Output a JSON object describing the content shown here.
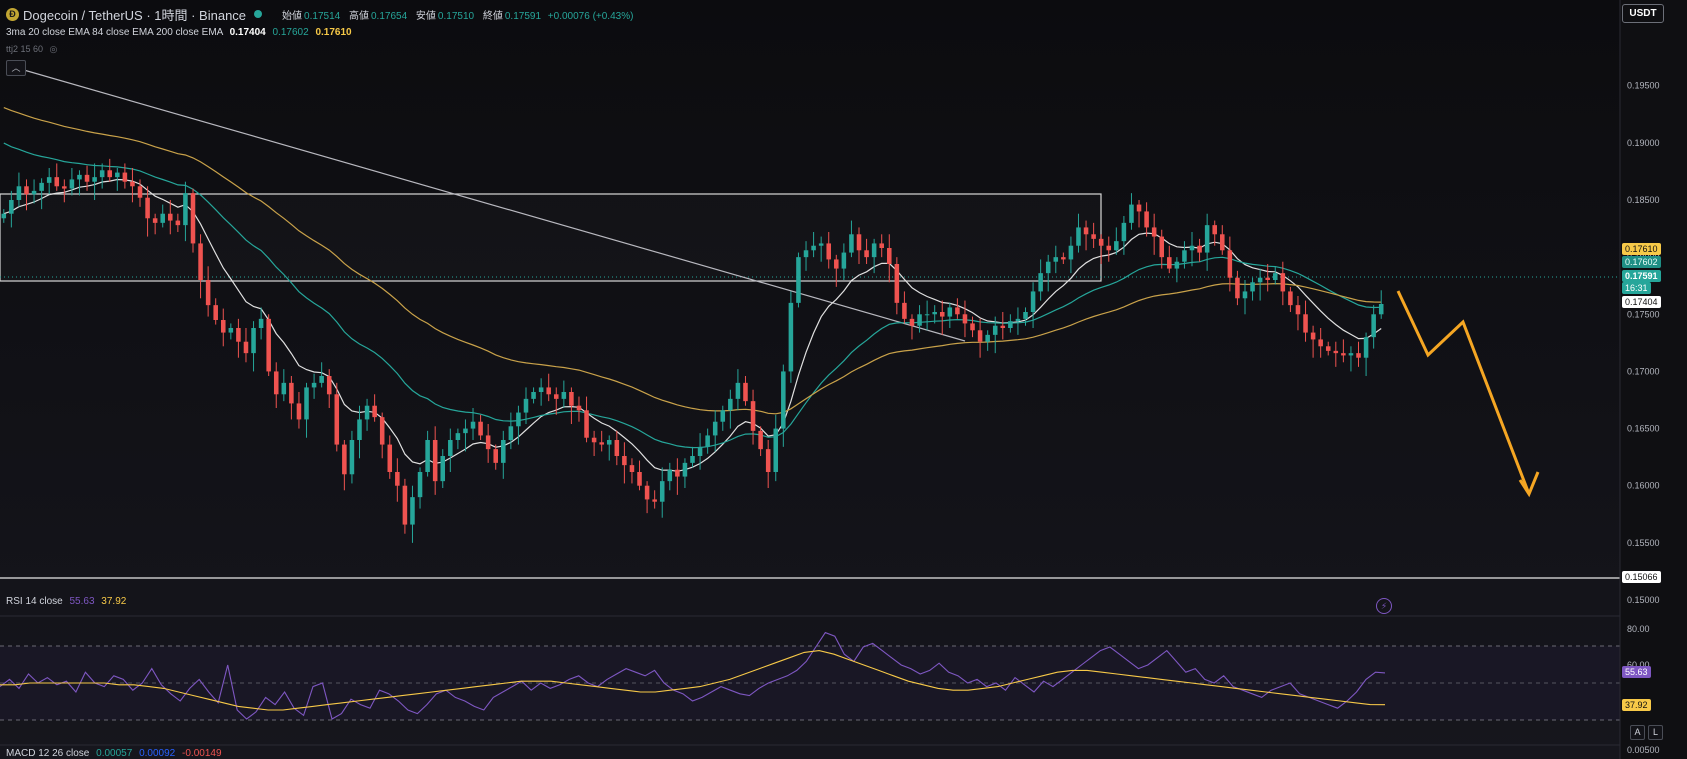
{
  "header": {
    "title": "Dogecoin / TetherUS · 1時間 · Binance",
    "open_label": "始値",
    "open": "0.17514",
    "high_label": "高値",
    "high": "0.17654",
    "low_label": "安値",
    "low": "0.17510",
    "close_label": "終値",
    "close": "0.17591",
    "change": "+0.00076 (+0.43%)"
  },
  "indicators": {
    "ma_label": "3ma 20 close EMA 84 close EMA 200 close EMA",
    "ma_v1": "0.17404",
    "ma_v2": "0.17602",
    "ma_v3": "0.17610",
    "ttj_label": "ttj2 15 60",
    "rsi_label": "RSI 14 close",
    "rsi_v1": "55.63",
    "rsi_v2": "37.92",
    "macd_label": "MACD 12 26 close",
    "macd_v1": "0.00057",
    "macd_v2": "0.00092",
    "macd_v3": "-0.00149"
  },
  "toolbar": {
    "currency": "USDT",
    "auto_label": "A",
    "log_label": "L",
    "collapse_icon": "chevron-up-icon",
    "bolt_icon": "lightning-icon"
  },
  "price_tags": {
    "ema200": "0.17610",
    "ema84": "0.17602",
    "last": "0.17591",
    "countdown": "16:31",
    "ema20": "0.17404",
    "line": "0.15066",
    "rsi": "55.63",
    "rsi_ma": "37.92"
  },
  "colors": {
    "up": "#26a69a",
    "down": "#ef5350",
    "ema20": "#e0e0e0",
    "ema84": "#26a69a",
    "ema200": "#c9a24a",
    "rsi": "#7e57c2",
    "rsi_ma": "#f7c948",
    "arrow": "#f5a623"
  },
  "chart_data": [
    {
      "type": "candlestick",
      "symbol": "Dogecoin / TetherUS",
      "interval": "1時間",
      "ylim": [
        0.15,
        0.199
      ],
      "y_ticks": [
        "0.19500",
        "0.19000",
        "0.18500",
        "0.18000",
        "0.17500",
        "0.17000",
        "0.16500",
        "0.16000",
        "0.15500",
        "0.15000"
      ],
      "close_series": [
        0.1838,
        0.185,
        0.1862,
        0.1855,
        0.1858,
        0.1865,
        0.187,
        0.1862,
        0.186,
        0.1868,
        0.1872,
        0.1866,
        0.187,
        0.1876,
        0.187,
        0.1874,
        0.1866,
        0.1862,
        0.1852,
        0.1834,
        0.183,
        0.1838,
        0.1832,
        0.1828,
        0.1856,
        0.1812,
        0.178,
        0.1758,
        0.1745,
        0.1734,
        0.1738,
        0.1726,
        0.1716,
        0.1738,
        0.1746,
        0.17,
        0.168,
        0.169,
        0.1672,
        0.1658,
        0.1686,
        0.169,
        0.1696,
        0.168,
        0.1636,
        0.161,
        0.164,
        0.1658,
        0.167,
        0.166,
        0.1636,
        0.1612,
        0.16,
        0.1566,
        0.159,
        0.1612,
        0.164,
        0.1604,
        0.1626,
        0.164,
        0.1646,
        0.165,
        0.1656,
        0.1644,
        0.1632,
        0.162,
        0.164,
        0.1652,
        0.1664,
        0.1676,
        0.1682,
        0.1686,
        0.168,
        0.1676,
        0.1682,
        0.167,
        0.1666,
        0.1642,
        0.1638,
        0.1636,
        0.164,
        0.1626,
        0.1618,
        0.1612,
        0.16,
        0.1588,
        0.1586,
        0.1604,
        0.1614,
        0.1608,
        0.162,
        0.1626,
        0.1634,
        0.1644,
        0.1656,
        0.1666,
        0.1676,
        0.169,
        0.1674,
        0.1648,
        0.1632,
        0.1612,
        0.165,
        0.17,
        0.176,
        0.18,
        0.1806,
        0.181,
        0.1812,
        0.1798,
        0.179,
        0.1804,
        0.182,
        0.1806,
        0.18,
        0.1812,
        0.1808,
        0.1794,
        0.176,
        0.1746,
        0.174,
        0.175,
        0.175,
        0.1752,
        0.1748,
        0.1756,
        0.175,
        0.1742,
        0.1736,
        0.1726,
        0.1732,
        0.174,
        0.1738,
        0.1744,
        0.1746,
        0.1752,
        0.177,
        0.1786,
        0.1796,
        0.18,
        0.1798,
        0.181,
        0.1826,
        0.182,
        0.1816,
        0.181,
        0.1806,
        0.1814,
        0.183,
        0.1846,
        0.184,
        0.1826,
        0.1818,
        0.18,
        0.179,
        0.1796,
        0.1806,
        0.181,
        0.1804,
        0.1828,
        0.182,
        0.1806,
        0.1782,
        0.1764,
        0.177,
        0.1778,
        0.1782,
        0.178,
        0.1786,
        0.177,
        0.1758,
        0.175,
        0.1734,
        0.1728,
        0.1722,
        0.1718,
        0.1716,
        0.1714,
        0.1716,
        0.1712,
        0.173,
        0.175,
        0.1759
      ]
    },
    {
      "type": "line",
      "title": "RSI 14 close",
      "ylim": [
        20,
        80
      ],
      "y_ticks": [
        "80.00",
        "60.00"
      ],
      "bands": [
        70,
        30
      ],
      "series": [
        {
          "name": "RSI",
          "values": [
            48,
            52,
            47,
            55,
            50,
            53,
            49,
            51,
            45,
            56,
            50,
            48,
            54,
            52,
            46,
            50,
            58,
            49,
            44,
            40,
            47,
            52,
            45,
            39,
            60,
            35,
            30,
            34,
            42,
            38,
            45,
            36,
            32,
            48,
            50,
            30,
            33,
            41,
            38,
            36,
            46,
            44,
            40,
            35,
            33,
            38,
            44,
            46,
            42,
            40,
            37,
            35,
            42,
            45,
            48,
            51,
            46,
            50,
            47,
            49,
            52,
            54,
            50,
            48,
            52,
            55,
            58,
            56,
            54,
            57,
            50,
            46,
            44,
            40,
            42,
            45,
            48,
            46,
            44,
            43,
            47,
            50,
            52,
            54,
            57,
            62,
            70,
            78,
            76,
            66,
            62,
            70,
            72,
            68,
            64,
            60,
            58,
            55,
            57,
            61,
            56,
            54,
            50,
            52,
            48,
            50,
            46,
            53,
            49,
            45,
            51,
            48,
            52,
            56,
            60,
            64,
            68,
            70,
            66,
            62,
            58,
            60,
            64,
            68,
            62,
            56,
            58,
            52,
            50,
            54,
            48,
            46,
            44,
            42,
            46,
            48,
            50,
            44,
            42,
            40,
            38,
            36,
            40,
            45,
            52,
            56,
            55.63
          ]
        },
        {
          "name": "MA",
          "values": [
            49,
            49,
            50,
            50,
            50,
            50,
            50,
            50,
            49,
            49,
            48,
            47,
            45,
            43,
            41,
            39,
            37,
            36,
            35,
            35,
            36,
            37,
            38,
            39,
            40,
            41,
            42,
            43,
            44,
            45,
            46,
            47,
            48,
            49,
            50,
            51,
            51,
            51,
            50,
            49,
            48,
            47,
            46,
            45,
            45,
            46,
            47,
            48,
            50,
            52,
            55,
            58,
            61,
            64,
            67,
            68,
            66,
            63,
            60,
            57,
            54,
            51,
            49,
            47,
            46,
            46,
            47,
            48,
            50,
            52,
            54,
            56,
            57,
            57,
            56,
            55,
            54,
            53,
            52,
            51,
            50,
            49,
            48,
            47,
            46,
            45,
            44,
            43,
            42,
            41,
            40,
            39,
            38,
            37.92
          ]
        }
      ]
    },
    {
      "type": "bar",
      "title": "MACD 12 26 close",
      "y_ticks": [
        "0.00500"
      ]
    }
  ]
}
